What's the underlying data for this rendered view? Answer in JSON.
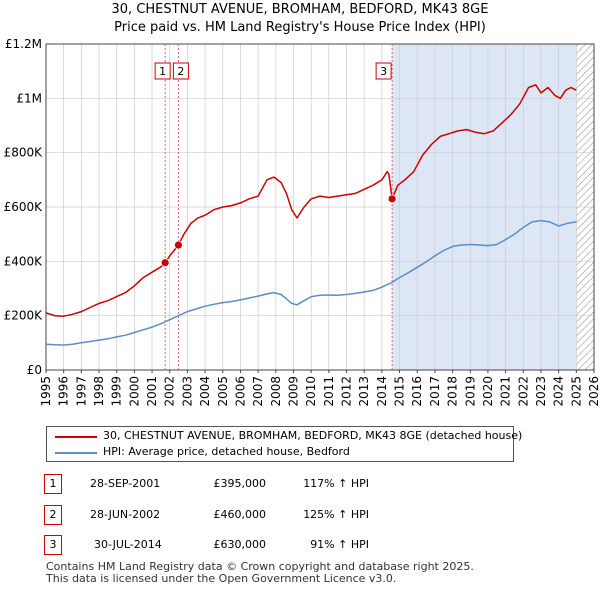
{
  "title_line1": "30, CHESTNUT AVENUE, BROMHAM, BEDFORD, MK43 8GE",
  "title_line2": "Price paid vs. HM Land Registry's House Price Index (HPI)",
  "colors": {
    "property": "#cc0000",
    "hpi": "#5b8ec8",
    "shade": "#dde6f5",
    "grid": "#cccccc",
    "vline": "#e06666",
    "hatch": "#888888"
  },
  "chart_data": {
    "type": "line",
    "ylim": [
      0,
      1200000
    ],
    "xlim": [
      1995,
      2026
    ],
    "y_ticks": [
      0,
      200000,
      400000,
      600000,
      800000,
      1000000,
      1200000
    ],
    "y_tick_labels": [
      "£0",
      "£200K",
      "£400K",
      "£600K",
      "£800K",
      "£1M",
      "£1.2M"
    ],
    "x_ticks": [
      1995,
      1996,
      1997,
      1998,
      1999,
      2000,
      2001,
      2002,
      2003,
      2004,
      2005,
      2006,
      2007,
      2008,
      2009,
      2010,
      2011,
      2012,
      2013,
      2014,
      2015,
      2016,
      2017,
      2018,
      2019,
      2020,
      2021,
      2022,
      2023,
      2024,
      2025,
      2026
    ],
    "x_tick_labels": [
      "1995",
      "1996",
      "1997",
      "1998",
      "1999",
      "2000",
      "2001",
      "2002",
      "2003",
      "2004",
      "2005",
      "2006",
      "2007",
      "2008",
      "2009",
      "2010",
      "2011",
      "2012",
      "2013",
      "2014",
      "2015",
      "2016",
      "2017",
      "2018",
      "2019",
      "2020",
      "2021",
      "2022",
      "2023",
      "2024",
      "2025",
      "2026"
    ],
    "shaded_region": [
      2014.58,
      2025.0
    ],
    "future_hatch_from": 2025.0,
    "series": [
      {
        "name": "30, CHESTNUT AVENUE, BROMHAM, BEDFORD, MK43 8GE (detached house)",
        "key": "property",
        "x": [
          1995.0,
          1995.5,
          1996.0,
          1996.5,
          1997.0,
          1997.5,
          1998.0,
          1998.5,
          1999.0,
          1999.5,
          2000.0,
          2000.5,
          2001.0,
          2001.5,
          2001.74,
          2002.0,
          2002.49,
          2002.8,
          2003.2,
          2003.6,
          2004.0,
          2004.5,
          2005.0,
          2005.5,
          2006.0,
          2006.5,
          2007.0,
          2007.5,
          2007.9,
          2008.3,
          2008.6,
          2008.9,
          2009.2,
          2009.6,
          2010.0,
          2010.5,
          2011.0,
          2011.5,
          2012.0,
          2012.5,
          2013.0,
          2013.5,
          2014.0,
          2014.3,
          2014.4,
          2014.58,
          2014.9,
          2015.3,
          2015.8,
          2016.3,
          2016.8,
          2017.3,
          2017.8,
          2018.3,
          2018.8,
          2019.3,
          2019.8,
          2020.3,
          2020.8,
          2021.3,
          2021.8,
          2022.3,
          2022.7,
          2023.0,
          2023.4,
          2023.8,
          2024.1,
          2024.4,
          2024.7,
          2025.0
        ],
        "values": [
          210000,
          200000,
          198000,
          205000,
          215000,
          230000,
          245000,
          255000,
          270000,
          285000,
          310000,
          340000,
          360000,
          380000,
          395000,
          420000,
          460000,
          500000,
          540000,
          560000,
          570000,
          590000,
          600000,
          605000,
          615000,
          630000,
          640000,
          700000,
          710000,
          690000,
          650000,
          590000,
          560000,
          600000,
          630000,
          640000,
          635000,
          640000,
          645000,
          650000,
          665000,
          680000,
          700000,
          730000,
          720000,
          630000,
          680000,
          700000,
          730000,
          790000,
          830000,
          860000,
          870000,
          880000,
          885000,
          875000,
          870000,
          880000,
          910000,
          940000,
          980000,
          1040000,
          1050000,
          1020000,
          1040000,
          1010000,
          1000000,
          1030000,
          1040000,
          1030000
        ]
      },
      {
        "name": "HPI: Average price, detached house, Bedford",
        "key": "hpi",
        "x": [
          1995.0,
          1995.5,
          1996.0,
          1996.5,
          1997.0,
          1997.5,
          1998.0,
          1998.5,
          1999.0,
          1999.5,
          2000.0,
          2000.5,
          2001.0,
          2001.5,
          2002.0,
          2002.5,
          2003.0,
          2003.5,
          2004.0,
          2004.5,
          2005.0,
          2005.5,
          2006.0,
          2006.5,
          2007.0,
          2007.5,
          2007.9,
          2008.3,
          2008.6,
          2008.9,
          2009.2,
          2009.6,
          2010.0,
          2010.5,
          2011.0,
          2011.5,
          2012.0,
          2012.5,
          2013.0,
          2013.5,
          2014.0,
          2014.5,
          2015.0,
          2015.5,
          2016.0,
          2016.5,
          2017.0,
          2017.5,
          2018.0,
          2018.5,
          2019.0,
          2019.5,
          2020.0,
          2020.5,
          2021.0,
          2021.5,
          2022.0,
          2022.5,
          2023.0,
          2023.5,
          2024.0,
          2024.5,
          2025.0
        ],
        "values": [
          95000,
          93000,
          92000,
          95000,
          100000,
          105000,
          110000,
          115000,
          122000,
          128000,
          138000,
          148000,
          158000,
          170000,
          185000,
          200000,
          215000,
          225000,
          235000,
          242000,
          248000,
          252000,
          258000,
          265000,
          272000,
          280000,
          285000,
          278000,
          262000,
          245000,
          240000,
          255000,
          270000,
          275000,
          276000,
          275000,
          278000,
          282000,
          287000,
          293000,
          305000,
          320000,
          340000,
          358000,
          378000,
          398000,
          420000,
          440000,
          455000,
          460000,
          462000,
          460000,
          458000,
          462000,
          480000,
          500000,
          525000,
          545000,
          550000,
          545000,
          530000,
          540000,
          545000
        ]
      }
    ],
    "sales": [
      {
        "id": "1",
        "x": 2001.74,
        "value": 395000,
        "date": "28-SEP-2001",
        "price": "£395,000",
        "hpi": "117% ↑ HPI"
      },
      {
        "id": "2",
        "x": 2002.49,
        "value": 460000,
        "date": "28-JUN-2002",
        "price": "£460,000",
        "hpi": "125% ↑ HPI"
      },
      {
        "id": "3",
        "x": 2014.58,
        "value": 630000,
        "date": "30-JUL-2014",
        "price": "£630,000",
        "hpi": "91% ↑ HPI"
      }
    ]
  },
  "legend": {
    "property_label": "30, CHESTNUT AVENUE, BROMHAM, BEDFORD, MK43 8GE (detached house)",
    "hpi_label": "HPI: Average price, detached house, Bedford"
  },
  "footer": {
    "line1": "Contains HM Land Registry data © Crown copyright and database right 2025.",
    "line2": "This data is licensed under the Open Government Licence v3.0."
  }
}
